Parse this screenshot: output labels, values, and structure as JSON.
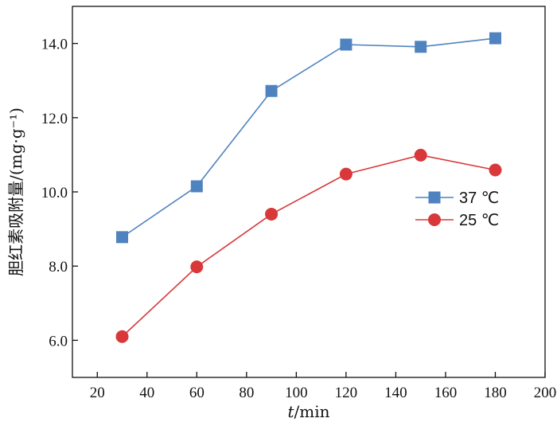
{
  "chart_data": {
    "type": "line",
    "x": [
      30,
      60,
      90,
      120,
      150,
      180
    ],
    "series": [
      {
        "name": "37 ℃",
        "values": [
          8.78,
          10.15,
          12.72,
          13.97,
          13.91,
          14.14
        ],
        "color": "#4f83c0",
        "marker": "square"
      },
      {
        "name": "25 ℃",
        "values": [
          6.1,
          7.98,
          9.4,
          10.48,
          10.99,
          10.59
        ],
        "color": "#d9383a",
        "marker": "circle"
      }
    ],
    "xlabel_italic": "t",
    "xlabel_rest": "/min",
    "ylabel": "胆红素吸附量/(mg·g⁻¹)",
    "xlim": [
      10,
      200
    ],
    "ylim": [
      5.0,
      15.0
    ],
    "xticks": [
      20,
      40,
      60,
      80,
      100,
      120,
      140,
      160,
      180,
      200
    ],
    "yticks": [
      6.0,
      8.0,
      10.0,
      12.0,
      14.0
    ],
    "ytick_labels": [
      "6.0",
      "8.0",
      "10.0",
      "12.0",
      "14.0"
    ],
    "grid": false,
    "legend_position": "center-right"
  }
}
